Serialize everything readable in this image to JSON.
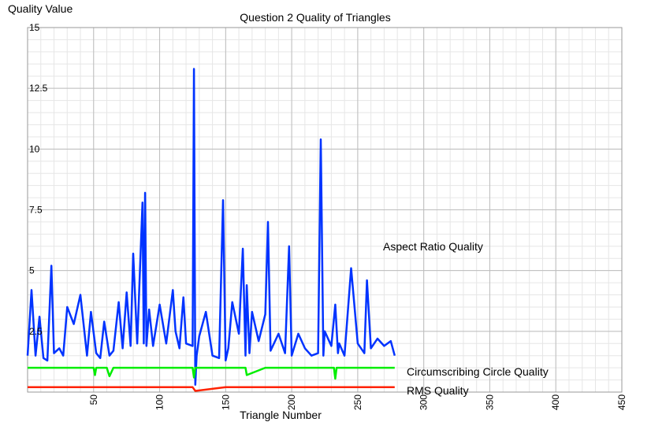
{
  "chart_data": {
    "type": "line",
    "title": "Question 2 Quality of Triangles",
    "ylabel": "Quality Value",
    "xlabel": "Triangle Number",
    "xlim": [
      0,
      450
    ],
    "ylim": [
      0,
      15
    ],
    "xticks": [
      "50",
      "100",
      "150",
      "200",
      "250",
      "300",
      "350",
      "400",
      "450"
    ],
    "yticks": [
      "2.5",
      "5",
      "7.5",
      "10",
      "12.5",
      "15"
    ],
    "grid": true,
    "series": [
      {
        "name": "Aspect Ratio Quality",
        "color": "#0033ff",
        "x": [
          0,
          3,
          6,
          9,
          12,
          15,
          18,
          20,
          24,
          27,
          30,
          35,
          40,
          45,
          48,
          52,
          55,
          58,
          62,
          65,
          69,
          72,
          75,
          78,
          80,
          83,
          87,
          88,
          89,
          90,
          92,
          95,
          100,
          105,
          110,
          112,
          115,
          118,
          120,
          125,
          126,
          127,
          128,
          130,
          135,
          140,
          145,
          148,
          150,
          152,
          155,
          160,
          163,
          165,
          166,
          168,
          170,
          175,
          180,
          182,
          184,
          190,
          195,
          198,
          200,
          205,
          210,
          215,
          220,
          222,
          224,
          225,
          230,
          235,
          240,
          233,
          236,
          245,
          250,
          255,
          257,
          260,
          265,
          270,
          275,
          278
        ],
        "y": [
          1.5,
          4.2,
          1.5,
          3.1,
          1.4,
          1.3,
          5.2,
          1.6,
          1.8,
          1.5,
          3.5,
          2.8,
          4.0,
          1.5,
          3.3,
          1.6,
          1.4,
          2.9,
          1.5,
          1.7,
          3.7,
          1.8,
          4.1,
          1.9,
          5.7,
          2.0,
          7.8,
          2.0,
          8.2,
          1.9,
          3.4,
          1.9,
          3.6,
          2.0,
          4.2,
          2.5,
          1.8,
          3.9,
          2.0,
          1.9,
          13.3,
          0.3,
          1.5,
          2.3,
          3.3,
          1.5,
          1.4,
          7.9,
          1.3,
          1.8,
          3.7,
          2.4,
          5.9,
          1.5,
          4.4,
          1.6,
          3.3,
          2.1,
          3.2,
          7.0,
          1.7,
          2.4,
          1.6,
          6.0,
          1.5,
          2.4,
          1.8,
          1.5,
          1.6,
          10.4,
          1.5,
          2.5,
          1.9,
          1.6,
          1.5,
          3.6,
          2.0,
          5.1,
          2.0,
          1.6,
          4.6,
          1.8,
          2.2,
          1.9,
          2.1,
          1.5
        ]
      },
      {
        "name": "Circumscribing Circle Quality",
        "color": "#00ee00",
        "x": [
          0,
          10,
          25,
          50,
          51,
          52,
          60,
          62,
          65,
          80,
          100,
          125,
          126,
          127,
          150,
          165,
          166,
          180,
          200,
          220,
          232,
          233,
          234,
          250,
          270,
          278
        ],
        "y": [
          1.0,
          1.0,
          1.0,
          1.0,
          0.7,
          1.0,
          1.0,
          0.65,
          1.0,
          1.0,
          1.0,
          1.0,
          0.6,
          1.0,
          1.0,
          1.0,
          0.7,
          1.0,
          1.0,
          1.0,
          1.0,
          0.55,
          1.0,
          1.0,
          1.0,
          1.0
        ]
      },
      {
        "name": "RMS Quality",
        "color": "#ff2200",
        "x": [
          0,
          20,
          40,
          60,
          80,
          100,
          125,
          127,
          150,
          175,
          200,
          225,
          250,
          278
        ],
        "y": [
          0.2,
          0.2,
          0.2,
          0.2,
          0.2,
          0.2,
          0.2,
          0.05,
          0.2,
          0.2,
          0.2,
          0.2,
          0.2,
          0.2
        ]
      }
    ],
    "annotations": [
      "Aspect Ratio Quality",
      "Circumscribing Circle Quality",
      "RMS Quality"
    ]
  }
}
